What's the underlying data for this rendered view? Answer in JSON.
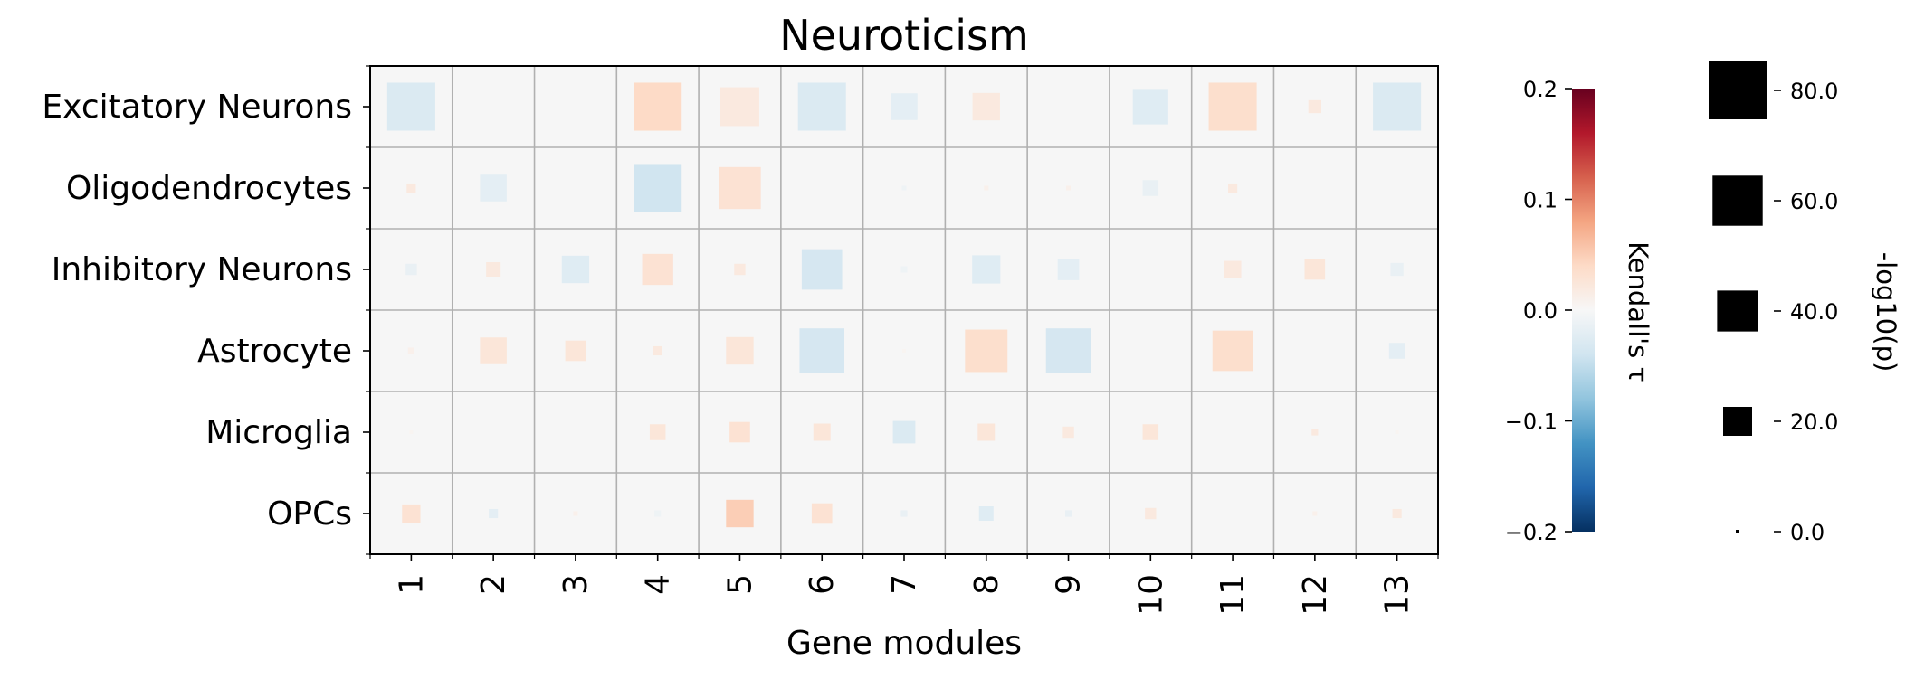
{
  "chart_data": {
    "type": "heatmap",
    "title": "Neuroticism",
    "xlabel": "Gene modules",
    "ylabel": "",
    "categories_x": [
      "1",
      "2",
      "3",
      "4",
      "5",
      "6",
      "7",
      "8",
      "9",
      "10",
      "11",
      "12",
      "13"
    ],
    "categories_y": [
      "Excitatory Neurons",
      "Oligodendrocytes",
      "Inhibitory Neurons",
      "Astrocyte",
      "Microglia",
      "OPCs"
    ],
    "cells": [
      {
        "row": 0,
        "col": 0,
        "tau": -0.03,
        "neglog10p": 55
      },
      {
        "row": 0,
        "col": 3,
        "tau": 0.04,
        "neglog10p": 55
      },
      {
        "row": 0,
        "col": 4,
        "tau": 0.02,
        "neglog10p": 36
      },
      {
        "row": 0,
        "col": 5,
        "tau": -0.03,
        "neglog10p": 55
      },
      {
        "row": 0,
        "col": 6,
        "tau": -0.02,
        "neglog10p": 17
      },
      {
        "row": 0,
        "col": 7,
        "tau": 0.02,
        "neglog10p": 18
      },
      {
        "row": 0,
        "col": 9,
        "tau": -0.025,
        "neglog10p": 30
      },
      {
        "row": 0,
        "col": 10,
        "tau": 0.035,
        "neglog10p": 55
      },
      {
        "row": 0,
        "col": 11,
        "tau": 0.02,
        "neglog10p": 4
      },
      {
        "row": 0,
        "col": 12,
        "tau": -0.03,
        "neglog10p": 55
      },
      {
        "row": 1,
        "col": 0,
        "tau": 0.02,
        "neglog10p": 2
      },
      {
        "row": 1,
        "col": 1,
        "tau": -0.02,
        "neglog10p": 17
      },
      {
        "row": 1,
        "col": 3,
        "tau": -0.04,
        "neglog10p": 55
      },
      {
        "row": 1,
        "col": 4,
        "tau": 0.03,
        "neglog10p": 42
      },
      {
        "row": 1,
        "col": 6,
        "tau": -0.01,
        "neglog10p": 0.5
      },
      {
        "row": 1,
        "col": 7,
        "tau": 0.01,
        "neglog10p": 0.5
      },
      {
        "row": 1,
        "col": 8,
        "tau": 0.01,
        "neglog10p": 0.5
      },
      {
        "row": 1,
        "col": 9,
        "tau": -0.015,
        "neglog10p": 6
      },
      {
        "row": 1,
        "col": 10,
        "tau": 0.02,
        "neglog10p": 2
      },
      {
        "row": 2,
        "col": 0,
        "tau": -0.015,
        "neglog10p": 3
      },
      {
        "row": 2,
        "col": 1,
        "tau": 0.02,
        "neglog10p": 5
      },
      {
        "row": 2,
        "col": 2,
        "tau": -0.025,
        "neglog10p": 18
      },
      {
        "row": 2,
        "col": 3,
        "tau": 0.03,
        "neglog10p": 23
      },
      {
        "row": 2,
        "col": 4,
        "tau": 0.02,
        "neglog10p": 3
      },
      {
        "row": 2,
        "col": 5,
        "tau": -0.035,
        "neglog10p": 39
      },
      {
        "row": 2,
        "col": 6,
        "tau": -0.01,
        "neglog10p": 1
      },
      {
        "row": 2,
        "col": 7,
        "tau": -0.025,
        "neglog10p": 19
      },
      {
        "row": 2,
        "col": 8,
        "tau": -0.02,
        "neglog10p": 11
      },
      {
        "row": 2,
        "col": 10,
        "tau": 0.02,
        "neglog10p": 7
      },
      {
        "row": 2,
        "col": 11,
        "tau": 0.025,
        "neglog10p": 10
      },
      {
        "row": 2,
        "col": 12,
        "tau": -0.015,
        "neglog10p": 4
      },
      {
        "row": 3,
        "col": 0,
        "tau": 0.01,
        "neglog10p": 1
      },
      {
        "row": 3,
        "col": 1,
        "tau": 0.025,
        "neglog10p": 17
      },
      {
        "row": 3,
        "col": 2,
        "tau": 0.025,
        "neglog10p": 10
      },
      {
        "row": 3,
        "col": 3,
        "tau": 0.02,
        "neglog10p": 2
      },
      {
        "row": 3,
        "col": 4,
        "tau": 0.025,
        "neglog10p": 18
      },
      {
        "row": 3,
        "col": 5,
        "tau": -0.035,
        "neglog10p": 48
      },
      {
        "row": 3,
        "col": 6,
        "tau": 0.005,
        "neglog10p": 0.3
      },
      {
        "row": 3,
        "col": 7,
        "tau": 0.035,
        "neglog10p": 43
      },
      {
        "row": 3,
        "col": 8,
        "tau": -0.035,
        "neglog10p": 48
      },
      {
        "row": 3,
        "col": 10,
        "tau": 0.035,
        "neglog10p": 39
      },
      {
        "row": 3,
        "col": 12,
        "tau": -0.02,
        "neglog10p": 6
      },
      {
        "row": 4,
        "col": 0,
        "tau": 0.005,
        "neglog10p": 0.3
      },
      {
        "row": 4,
        "col": 3,
        "tau": 0.025,
        "neglog10p": 6
      },
      {
        "row": 4,
        "col": 4,
        "tau": 0.03,
        "neglog10p": 10
      },
      {
        "row": 4,
        "col": 5,
        "tau": 0.025,
        "neglog10p": 7
      },
      {
        "row": 4,
        "col": 6,
        "tau": -0.03,
        "neglog10p": 12
      },
      {
        "row": 4,
        "col": 7,
        "tau": 0.025,
        "neglog10p": 7
      },
      {
        "row": 4,
        "col": 8,
        "tau": 0.02,
        "neglog10p": 3
      },
      {
        "row": 4,
        "col": 9,
        "tau": 0.025,
        "neglog10p": 6
      },
      {
        "row": 4,
        "col": 11,
        "tau": 0.02,
        "neglog10p": 1
      },
      {
        "row": 4,
        "col": 12,
        "tau": 0.005,
        "neglog10p": 0.3
      },
      {
        "row": 5,
        "col": 0,
        "tau": 0.03,
        "neglog10p": 8
      },
      {
        "row": 5,
        "col": 1,
        "tau": -0.02,
        "neglog10p": 2
      },
      {
        "row": 5,
        "col": 2,
        "tau": 0.01,
        "neglog10p": 0.5
      },
      {
        "row": 5,
        "col": 3,
        "tau": -0.01,
        "neglog10p": 1
      },
      {
        "row": 5,
        "col": 4,
        "tau": 0.05,
        "neglog10p": 18
      },
      {
        "row": 5,
        "col": 5,
        "tau": 0.03,
        "neglog10p": 10
      },
      {
        "row": 5,
        "col": 6,
        "tau": -0.015,
        "neglog10p": 1
      },
      {
        "row": 5,
        "col": 7,
        "tau": -0.025,
        "neglog10p": 5
      },
      {
        "row": 5,
        "col": 8,
        "tau": -0.015,
        "neglog10p": 1
      },
      {
        "row": 5,
        "col": 9,
        "tau": 0.02,
        "neglog10p": 3
      },
      {
        "row": 5,
        "col": 11,
        "tau": 0.01,
        "neglog10p": 0.5
      },
      {
        "row": 5,
        "col": 12,
        "tau": 0.02,
        "neglog10p": 2
      }
    ],
    "colorbar": {
      "label": "Kendall's τ",
      "range": [
        -0.2,
        0.2
      ],
      "ticks": [
        "0.2",
        "0.1",
        "0.0",
        "−0.1",
        "−0.2"
      ],
      "colormap": [
        "#053061",
        "#2166ac",
        "#4393c3",
        "#92c5de",
        "#d1e5f0",
        "#f7f7f7",
        "#fddbc7",
        "#f4a582",
        "#d6604d",
        "#b2182b",
        "#67001f"
      ]
    },
    "size_legend": {
      "label": "-log10(p)",
      "values": [
        80.0,
        60.0,
        40.0,
        20.0,
        0.0
      ],
      "tick_labels": [
        "80.0",
        "60.0",
        "40.0",
        "20.0",
        "0.0"
      ]
    },
    "grid": true,
    "background_color": "#f6f6f6"
  }
}
